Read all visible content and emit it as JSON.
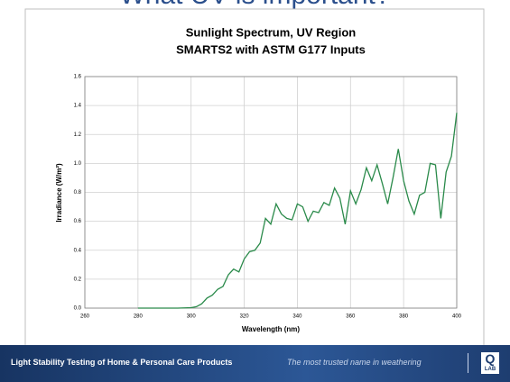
{
  "header": {
    "title": "What UV is important?"
  },
  "chart_data": {
    "type": "line",
    "title": "Sunlight Spectrum, UV Region",
    "subtitle": "SMARTS2 with ASTM G177 Inputs",
    "x_label": "Wavelength (nm)",
    "y_label": "Irradiance (W/m²)",
    "xlim": [
      260,
      400
    ],
    "xticks": [
      260,
      280,
      300,
      320,
      340,
      360,
      380,
      400
    ],
    "ylim": [
      0,
      1.6
    ],
    "yticks": [
      {
        "value": 0,
        "label": "0.0"
      },
      0.2,
      0.4,
      0.6,
      0.8,
      {
        "value": 1,
        "label": "1.0"
      },
      1.2,
      1.4,
      1.6
    ],
    "grid": true,
    "x": [
      280,
      290,
      295,
      300,
      302,
      304,
      306,
      308,
      310,
      312,
      314,
      316,
      318,
      320,
      322,
      324,
      326,
      328,
      330,
      332,
      334,
      336,
      338,
      340,
      342,
      344,
      346,
      348,
      350,
      352,
      354,
      356,
      358,
      360,
      362,
      364,
      366,
      368,
      370,
      372,
      374,
      376,
      378,
      380,
      382,
      384,
      386,
      388,
      390,
      392,
      394,
      396,
      398,
      400
    ],
    "series": [
      {
        "color": "#2a8a4a",
        "values": [
          0,
          0,
          0,
          0.003,
          0.01,
          0.03,
          0.07,
          0.09,
          0.13,
          0.15,
          0.23,
          0.27,
          0.25,
          0.34,
          0.39,
          0.4,
          0.45,
          0.62,
          0.58,
          0.72,
          0.65,
          0.62,
          0.61,
          0.72,
          0.7,
          0.6,
          0.67,
          0.66,
          0.73,
          0.71,
          0.83,
          0.76,
          0.58,
          0.81,
          0.72,
          0.82,
          0.97,
          0.88,
          0.99,
          0.86,
          0.72,
          0.9,
          1.1,
          0.88,
          0.74,
          0.65,
          0.78,
          0.8,
          1.0,
          0.99,
          0.62,
          0.94,
          1.05,
          1.35
        ]
      }
    ]
  },
  "footer": {
    "left": "Light Stability Testing of Home & Personal Care Products",
    "right": "The most trusted name in weathering",
    "logo_top": "Q",
    "logo_bottom": "LAB"
  }
}
